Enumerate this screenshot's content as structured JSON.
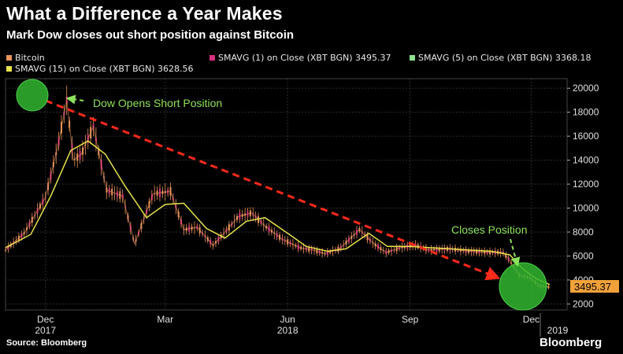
{
  "header": {
    "title": "What a Difference a Year Makes",
    "subtitle": "Mark Dow closes out short position against Bitcoin"
  },
  "legend": [
    {
      "label": "Bitcoin",
      "color": "#e8935a"
    },
    {
      "label": "SMAVG (1)  on Close (XBT BGN) 3495.37",
      "color": "#d5307e"
    },
    {
      "label": "SMAVG (5)  on Close (XBT BGN) 3368.18",
      "color": "#8de08d"
    },
    {
      "label": "SMAVG (15)  on Close (XBT BGN) 3628.56",
      "color": "#e7e24a"
    }
  ],
  "chart_data": {
    "type": "line",
    "x_ticks": [
      "Dec",
      "Mar",
      "Jun",
      "Sep",
      "Dec"
    ],
    "year_labels": [
      "2017",
      "2018",
      "2019"
    ],
    "y_ticks": [
      2000,
      4000,
      6000,
      8000,
      10000,
      12000,
      14000,
      16000,
      18000,
      20000
    ],
    "ylim": [
      1500,
      20800
    ],
    "grid": true,
    "last_value_label": "3495.37",
    "series": [
      {
        "name": "Bitcoin",
        "color": "#e8935a",
        "x": [
          "2017-11-01",
          "2017-11-15",
          "2017-12-01",
          "2017-12-10",
          "2017-12-17",
          "2017-12-22",
          "2017-12-28",
          "2018-01-06",
          "2018-01-16",
          "2018-01-28",
          "2018-02-06",
          "2018-02-12",
          "2018-02-20",
          "2018-03-05",
          "2018-03-15",
          "2018-03-25",
          "2018-04-06",
          "2018-04-15",
          "2018-04-25",
          "2018-05-05",
          "2018-05-15",
          "2018-05-28",
          "2018-06-10",
          "2018-06-20",
          "2018-06-29",
          "2018-07-10",
          "2018-07-25",
          "2018-08-05",
          "2018-08-14",
          "2018-08-25",
          "2018-09-05",
          "2018-09-15",
          "2018-09-30",
          "2018-10-15",
          "2018-10-30",
          "2018-11-10",
          "2018-11-15",
          "2018-11-22",
          "2018-11-30",
          "2018-12-07",
          "2018-12-15"
        ],
        "values": [
          6500,
          7900,
          10900,
          15000,
          19000,
          14000,
          14500,
          16800,
          11500,
          11000,
          7000,
          8800,
          11200,
          11400,
          8200,
          8400,
          6900,
          8000,
          9300,
          9600,
          8500,
          7400,
          6700,
          6500,
          6200,
          6600,
          8200,
          7000,
          6300,
          6700,
          6900,
          6500,
          6600,
          6400,
          6300,
          6300,
          5600,
          4400,
          4200,
          3500,
          3400
        ]
      },
      {
        "name": "SMAVG (15)",
        "color": "#e7e24a",
        "x": [
          "2017-11-01",
          "2017-11-20",
          "2017-12-05",
          "2017-12-20",
          "2018-01-02",
          "2018-01-15",
          "2018-01-30",
          "2018-02-15",
          "2018-03-01",
          "2018-03-15",
          "2018-04-01",
          "2018-04-15",
          "2018-05-01",
          "2018-05-15",
          "2018-06-01",
          "2018-06-15",
          "2018-07-01",
          "2018-07-15",
          "2018-08-01",
          "2018-08-15",
          "2018-09-01",
          "2018-09-15",
          "2018-10-01",
          "2018-10-15",
          "2018-11-01",
          "2018-11-15",
          "2018-11-25",
          "2018-12-05",
          "2018-12-15"
        ],
        "values": [
          6700,
          7800,
          11000,
          14800,
          15600,
          14500,
          11800,
          9200,
          10300,
          10400,
          8300,
          7500,
          8900,
          9200,
          7900,
          6800,
          6400,
          6600,
          7900,
          6800,
          6800,
          6700,
          6600,
          6500,
          6400,
          6100,
          4900,
          4100,
          3620
        ]
      }
    ]
  },
  "annotations": {
    "open_label": "Dow Opens Short Position",
    "close_label": "Closes Position"
  },
  "footer": {
    "source": "Source: Bloomberg",
    "brand": "Bloomberg"
  }
}
